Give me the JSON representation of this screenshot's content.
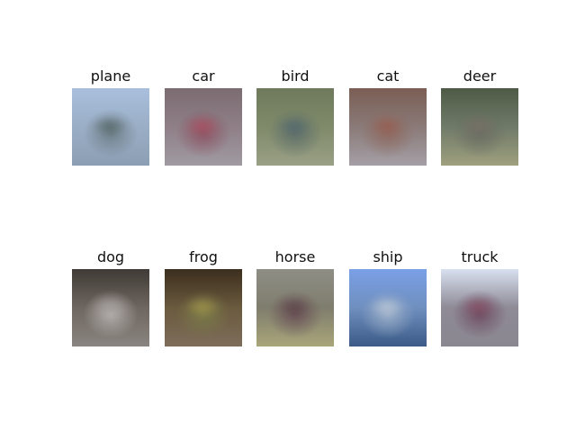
{
  "figure": {
    "panels": [
      {
        "label": "plane",
        "colors": {
          "bg": "#9aaec6",
          "center": "#6f7f88",
          "top": "#a9bfdc",
          "bottom": "#8c9eb3",
          "accent": "#4e5f5c"
        }
      },
      {
        "label": "car",
        "colors": {
          "bg": "#8f7f86",
          "center": "#8c5565",
          "top": "#7b6c72",
          "bottom": "#a09aa2",
          "accent": "#b04b5f"
        }
      },
      {
        "label": "bird",
        "colors": {
          "bg": "#7f8a6a",
          "center": "#5f6f6a",
          "top": "#6f7a5c",
          "bottom": "#9aa086",
          "accent": "#4f6670"
        }
      },
      {
        "label": "cat",
        "colors": {
          "bg": "#8a7a78",
          "center": "#8e6a60",
          "top": "#7b5e54",
          "bottom": "#a49fa6",
          "accent": "#99584a"
        }
      },
      {
        "label": "deer",
        "colors": {
          "bg": "#6f7a68",
          "center": "#6a6d63",
          "top": "#4f5a46",
          "bottom": "#9fa07e",
          "accent": "#7a6f66"
        }
      },
      {
        "label": "dog",
        "colors": {
          "bg": "#6e6660",
          "center": "#b6b1b0",
          "top": "#3f3a35",
          "bottom": "#8a8580",
          "accent": "#a39d9c"
        }
      },
      {
        "label": "frog",
        "colors": {
          "bg": "#6a5a3e",
          "center": "#7a7a48",
          "top": "#3c2e1e",
          "bottom": "#7e6d5a",
          "accent": "#a99a4a"
        }
      },
      {
        "label": "horse",
        "colors": {
          "bg": "#7f7d6d",
          "center": "#6a5258",
          "top": "#8e8e86",
          "bottom": "#a9a67a",
          "accent": "#5a3f44"
        }
      },
      {
        "label": "ship",
        "colors": {
          "bg": "#6f8fbf",
          "center": "#9aaec8",
          "top": "#7aa0e6",
          "bottom": "#3b5a86",
          "accent": "#c2ced9"
        }
      },
      {
        "label": "truck",
        "colors": {
          "bg": "#8e8a96",
          "center": "#6e4d61",
          "top": "#d9e0f0",
          "bottom": "#8b8790",
          "accent": "#8a4a62"
        }
      }
    ]
  }
}
